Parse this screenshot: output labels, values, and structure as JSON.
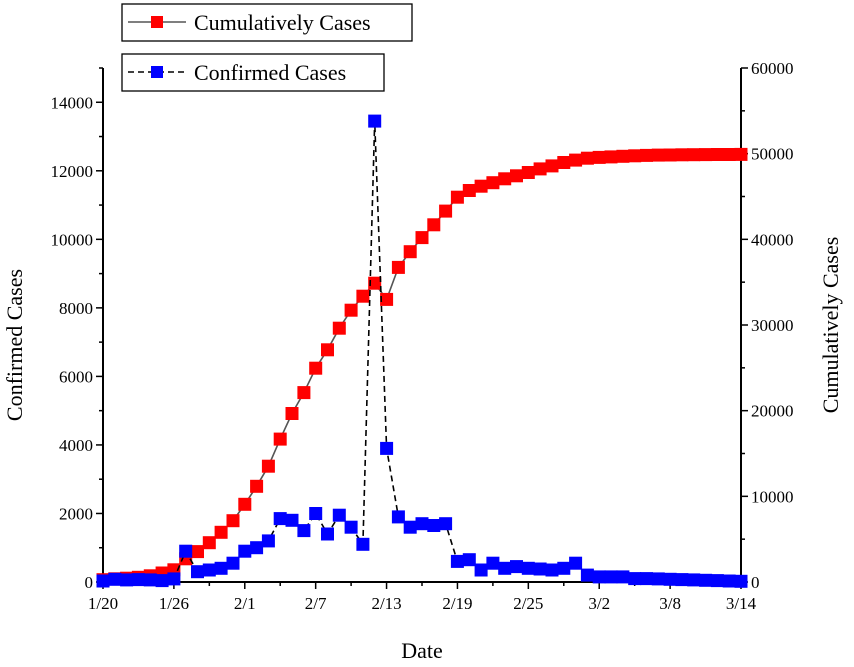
{
  "chart_data": {
    "type": "line",
    "xlabel": "Date",
    "ylabel_left": "Confirmed Cases",
    "ylabel_right": "Cumulatively Cases",
    "x_start_label": "1/20",
    "x_ticks": [
      {
        "day": 0,
        "label": "1/20"
      },
      {
        "day": 6,
        "label": "1/26"
      },
      {
        "day": 12,
        "label": "2/1"
      },
      {
        "day": 18,
        "label": "2/7"
      },
      {
        "day": 24,
        "label": "2/13"
      },
      {
        "day": 30,
        "label": "2/19"
      },
      {
        "day": 36,
        "label": "2/25"
      },
      {
        "day": 42,
        "label": "3/2"
      },
      {
        "day": 48,
        "label": "3/8"
      },
      {
        "day": 54,
        "label": "3/14"
      }
    ],
    "xlim": [
      0,
      54
    ],
    "ylim_left": [
      0,
      15000
    ],
    "yticks_left": [
      0,
      2000,
      4000,
      6000,
      8000,
      10000,
      12000,
      14000
    ],
    "ylim_right": [
      0,
      60000
    ],
    "yticks_right": [
      0,
      10000,
      20000,
      30000,
      40000,
      50000,
      60000
    ],
    "series": [
      {
        "name": "Cumulatively Cases",
        "axis": "right",
        "color": "#ff0000",
        "line_style": "solid",
        "line_color": "#555555",
        "x": [
          0,
          1,
          2,
          3,
          4,
          5,
          6,
          7,
          8,
          9,
          10,
          11,
          12,
          13,
          14,
          15,
          16,
          17,
          18,
          19,
          20,
          21,
          22,
          23,
          24,
          25,
          26,
          27,
          28,
          29,
          30,
          31,
          32,
          33,
          34,
          35,
          36,
          37,
          38,
          39,
          40,
          41,
          42,
          43,
          44,
          45,
          46,
          47,
          48,
          49,
          50,
          51,
          52,
          53,
          54
        ],
        "values": [
          270,
          375,
          444,
          549,
          729,
          1052,
          1423,
          2714,
          3554,
          4586,
          5806,
          7153,
          9074,
          11177,
          13522,
          16678,
          19665,
          22112,
          24953,
          27100,
          29631,
          31728,
          33366,
          34874,
          32994,
          36719,
          38556,
          40201,
          41702,
          43291,
          44915,
          45697,
          46201,
          46606,
          47071,
          47416,
          47798,
          48222,
          48574,
          48967,
          49249,
          49466,
          49568,
          49622,
          49697,
          49755,
          49794,
          49836,
          49850,
          49870,
          49880,
          49890,
          49900,
          49905,
          49910
        ]
      },
      {
        "name": "Confirmed Cases",
        "axis": "left",
        "color": "#0000ff",
        "line_style": "dashed",
        "line_color": "#000000",
        "x": [
          0,
          1,
          2,
          3,
          4,
          5,
          6,
          7,
          8,
          9,
          10,
          11,
          12,
          13,
          14,
          15,
          16,
          17,
          18,
          19,
          20,
          21,
          22,
          23,
          24,
          25,
          26,
          27,
          28,
          29,
          30,
          31,
          32,
          33,
          34,
          35,
          36,
          37,
          38,
          39,
          40,
          41,
          42,
          43,
          44,
          45,
          46,
          47,
          48,
          49,
          50,
          51,
          52,
          53,
          54
        ],
        "values": [
          30,
          80,
          60,
          70,
          60,
          40,
          90,
          900,
          300,
          350,
          400,
          550,
          900,
          1000,
          1200,
          1850,
          1800,
          1500,
          2000,
          1400,
          1950,
          1600,
          1100,
          13450,
          3900,
          1900,
          1600,
          1700,
          1650,
          1700,
          600,
          650,
          350,
          550,
          400,
          450,
          400,
          380,
          350,
          400,
          550,
          200,
          150,
          150,
          150,
          100,
          100,
          90,
          80,
          70,
          60,
          50,
          40,
          30,
          20
        ]
      }
    ]
  }
}
